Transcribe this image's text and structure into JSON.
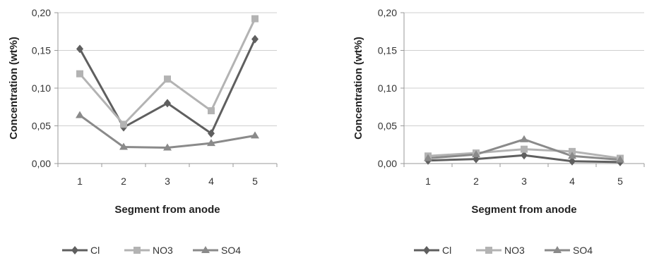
{
  "chart_data": [
    {
      "type": "line",
      "title": "",
      "xlabel": "Segment from anode",
      "ylabel": "Concentration (wt%)",
      "categories": [
        "1",
        "2",
        "3",
        "4",
        "5"
      ],
      "ylim": [
        0,
        0.2
      ],
      "yticks": [
        "0,00",
        "0,05",
        "0,10",
        "0,15",
        "0,20"
      ],
      "grid": "horizontal",
      "legend": "bottom",
      "series": [
        {
          "name": "Cl",
          "marker": "diamond",
          "color": "#5f5f5f",
          "values": [
            0.152,
            0.048,
            0.08,
            0.04,
            0.165
          ]
        },
        {
          "name": "NO3",
          "marker": "square",
          "color": "#b3b3b3",
          "values": [
            0.119,
            0.052,
            0.112,
            0.07,
            0.192
          ]
        },
        {
          "name": "SO4",
          "marker": "triangle",
          "color": "#8a8a8a",
          "values": [
            0.064,
            0.022,
            0.021,
            0.027,
            0.037
          ]
        }
      ]
    },
    {
      "type": "line",
      "title": "",
      "xlabel": "Segment from anode",
      "ylabel": "Concentration (wt%)",
      "categories": [
        "1",
        "2",
        "3",
        "4",
        "5"
      ],
      "ylim": [
        0,
        0.2
      ],
      "yticks": [
        "0,00",
        "0,05",
        "0,10",
        "0,15",
        "0,20"
      ],
      "grid": "horizontal",
      "legend": "bottom",
      "series": [
        {
          "name": "Cl",
          "marker": "diamond",
          "color": "#5f5f5f",
          "values": [
            0.004,
            0.006,
            0.011,
            0.003,
            0.002
          ]
        },
        {
          "name": "NO3",
          "marker": "square",
          "color": "#b3b3b3",
          "values": [
            0.01,
            0.014,
            0.019,
            0.016,
            0.007
          ]
        },
        {
          "name": "SO4",
          "marker": "triangle",
          "color": "#8a8a8a",
          "values": [
            0.007,
            0.012,
            0.032,
            0.01,
            0.005
          ]
        }
      ]
    }
  ]
}
